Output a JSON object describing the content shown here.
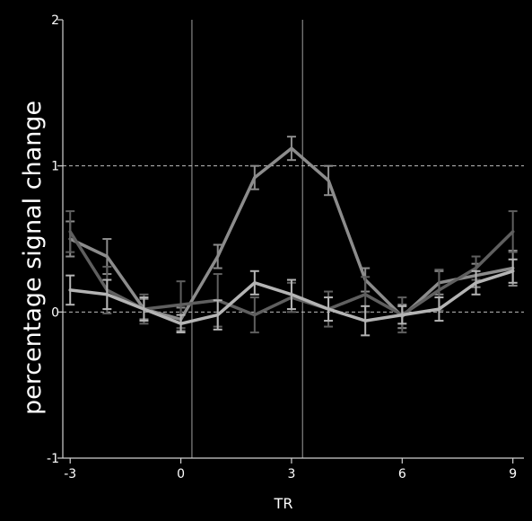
{
  "chart_data": {
    "type": "line",
    "title": "",
    "xlabel": "TR",
    "ylabel": "percentage signal change",
    "xlim": [
      -3.2,
      9.3
    ],
    "ylim": [
      -1,
      2
    ],
    "x_ticks": [
      "-3",
      "0",
      "3",
      "6",
      "9"
    ],
    "y_ticks": [
      "-1",
      "0",
      "1",
      "2"
    ],
    "x": [
      -3,
      -2,
      -1,
      0,
      1,
      2,
      3,
      4,
      5,
      6,
      7,
      8,
      9
    ],
    "reference_vlines": [
      0.3,
      3.3
    ],
    "reference_hlines": [
      0,
      1
    ],
    "grid": false,
    "legend": "none",
    "series": [
      {
        "color": "#8c8c8c",
        "values": [
          0.5,
          0.38,
          0.02,
          -0.05,
          0.38,
          0.92,
          1.12,
          0.9,
          0.22,
          -0.03,
          0.2,
          0.25,
          0.3
        ],
        "errors": [
          0.12,
          0.12,
          0.07,
          0.08,
          0.08,
          0.08,
          0.08,
          0.1,
          0.08,
          0.08,
          0.08,
          0.08,
          0.12
        ]
      },
      {
        "color": "#5f5f5f",
        "values": [
          0.55,
          0.15,
          0.02,
          0.05,
          0.08,
          -0.02,
          0.1,
          0.02,
          0.12,
          -0.02,
          0.15,
          0.3,
          0.55
        ],
        "errors": [
          0.14,
          0.16,
          0.1,
          0.16,
          0.18,
          0.12,
          0.1,
          0.12,
          0.12,
          0.12,
          0.14,
          0.08,
          0.14
        ]
      },
      {
        "color": "#b4b4b4",
        "values": [
          0.15,
          0.12,
          0.02,
          -0.08,
          -0.02,
          0.2,
          0.12,
          0.02,
          -0.06,
          -0.02,
          0.02,
          0.2,
          0.28
        ],
        "errors": [
          0.1,
          0.1,
          0.08,
          0.06,
          0.1,
          0.08,
          0.1,
          0.08,
          0.1,
          0.06,
          0.08,
          0.08,
          0.08
        ]
      }
    ]
  }
}
